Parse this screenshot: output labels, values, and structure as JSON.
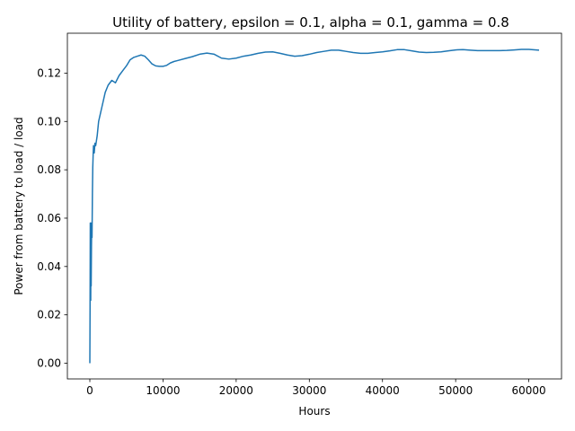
{
  "chart_data": {
    "type": "line",
    "title": "Utility of battery, epsilon = 0.1, alpha = 0.1, gamma = 0.8",
    "xlabel": "Hours",
    "ylabel": "Power from battery to load / load",
    "xlim": [
      -3070,
      64470
    ],
    "ylim": [
      -0.0065,
      0.1365
    ],
    "xticks": [
      0,
      10000,
      20000,
      30000,
      40000,
      50000,
      60000
    ],
    "xtick_labels": [
      "0",
      "10000",
      "20000",
      "30000",
      "40000",
      "50000",
      "60000"
    ],
    "yticks": [
      0.0,
      0.02,
      0.04,
      0.06,
      0.08,
      0.1,
      0.12
    ],
    "ytick_labels": [
      "0.00",
      "0.02",
      "0.04",
      "0.06",
      "0.08",
      "0.10",
      "0.12"
    ],
    "grid": false,
    "color": "#1f77b4",
    "series": [
      {
        "x": [
          0,
          30,
          60,
          90,
          120,
          150,
          180,
          220,
          260,
          300,
          350,
          400,
          450,
          500,
          600,
          700,
          800,
          1000,
          1200,
          1500,
          1800,
          2100,
          2500,
          3000,
          3500,
          4000,
          4500,
          5000,
          5500,
          6000,
          6500,
          7000,
          7500,
          8000,
          8500,
          9000,
          9500,
          10000,
          10500,
          11000,
          11500,
          12000,
          13000,
          14000,
          15000,
          16000,
          17000,
          18000,
          19000,
          20000,
          21000,
          22000,
          23000,
          24000,
          25000,
          26000,
          27000,
          28000,
          29000,
          30000,
          31000,
          32000,
          33000,
          34000,
          35000,
          36000,
          37000,
          38000,
          39000,
          40000,
          41000,
          42000,
          43000,
          44000,
          45000,
          46000,
          47000,
          48000,
          49000,
          50000,
          51000,
          52000,
          53000,
          54000,
          55000,
          56000,
          57000,
          58000,
          59000,
          60000,
          61000,
          61400
        ],
        "y": [
          0.0,
          0.022,
          0.058,
          0.042,
          0.026,
          0.058,
          0.032,
          0.048,
          0.058,
          0.052,
          0.07,
          0.081,
          0.086,
          0.09,
          0.087,
          0.091,
          0.09,
          0.094,
          0.1,
          0.104,
          0.108,
          0.112,
          0.115,
          0.117,
          0.116,
          0.119,
          0.121,
          0.123,
          0.1255,
          0.1265,
          0.127,
          0.1275,
          0.127,
          0.1255,
          0.1238,
          0.123,
          0.1228,
          0.1228,
          0.1232,
          0.1242,
          0.1248,
          0.1252,
          0.126,
          0.1268,
          0.1278,
          0.1283,
          0.1278,
          0.1262,
          0.1258,
          0.1262,
          0.127,
          0.1275,
          0.1282,
          0.1287,
          0.1288,
          0.1282,
          0.1275,
          0.127,
          0.1272,
          0.1278,
          0.1285,
          0.129,
          0.1295,
          0.1295,
          0.129,
          0.1285,
          0.1282,
          0.1282,
          0.1285,
          0.1288,
          0.1292,
          0.1297,
          0.1297,
          0.1292,
          0.1287,
          0.1285,
          0.1286,
          0.1288,
          0.1292,
          0.1296,
          0.1297,
          0.1295,
          0.1293,
          0.1293,
          0.1293,
          0.1293,
          0.1294,
          0.1296,
          0.1298,
          0.1298,
          0.1296,
          0.1295
        ]
      }
    ]
  }
}
